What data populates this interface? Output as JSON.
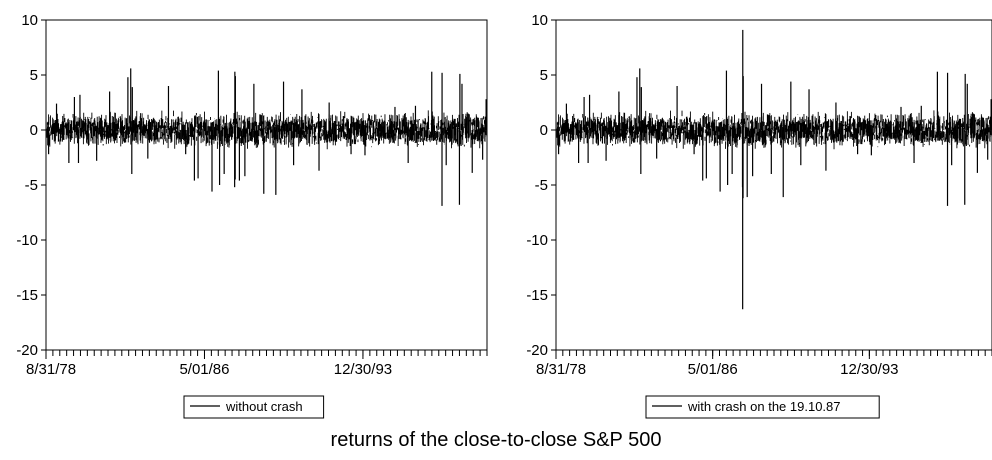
{
  "caption": "returns of the close-to-close  S&P 500",
  "chart_data": [
    {
      "type": "line",
      "title": "",
      "xlabel": "",
      "ylabel": "",
      "ylim": [
        -20,
        10
      ],
      "yticks": [
        -20,
        -15,
        -10,
        -5,
        0,
        5,
        10
      ],
      "x_start": "8/31/78",
      "x_end": "12/31/99",
      "x_tick_labels": [
        "8/31/78",
        "5/01/86",
        "12/30/93"
      ],
      "legend": "without crash",
      "legend_position": "bottom-center",
      "grid": false,
      "color": "#000000",
      "baseline_band": [
        -1.2,
        1.2
      ],
      "spikes": [
        {
          "date": "1978-10-16",
          "value": -2.2
        },
        {
          "date": "1979-03-05",
          "value": 2.4
        },
        {
          "date": "1979-10-09",
          "value": -3.0
        },
        {
          "date": "1980-01-15",
          "value": 3.0
        },
        {
          "date": "1980-03-27",
          "value": -3.0
        },
        {
          "date": "1980-04-22",
          "value": 3.2
        },
        {
          "date": "1981-02-11",
          "value": -2.8
        },
        {
          "date": "1981-09-28",
          "value": 3.5
        },
        {
          "date": "1982-08-17",
          "value": 4.8
        },
        {
          "date": "1982-10-06",
          "value": 5.6
        },
        {
          "date": "1982-10-25",
          "value": -4.0
        },
        {
          "date": "1982-11-03",
          "value": 3.9
        },
        {
          "date": "1983-08-04",
          "value": -2.6
        },
        {
          "date": "1984-08-03",
          "value": 4.0
        },
        {
          "date": "1985-06-03",
          "value": -2.2
        },
        {
          "date": "1985-11-04",
          "value": -4.6
        },
        {
          "date": "1986-01-08",
          "value": -4.4
        },
        {
          "date": "1986-09-11",
          "value": -5.6
        },
        {
          "date": "1987-01-02",
          "value": 5.4
        },
        {
          "date": "1987-01-23",
          "value": -5.0
        },
        {
          "date": "1987-04-14",
          "value": -4.0
        },
        {
          "date": "1987-10-16",
          "value": -5.2
        },
        {
          "date": "1987-10-20",
          "value": 5.3
        },
        {
          "date": "1987-10-26",
          "value": -4.5
        },
        {
          "date": "1987-10-29",
          "value": 4.9
        },
        {
          "date": "1988-01-08",
          "value": -4.6
        },
        {
          "date": "1988-04-14",
          "value": -4.2
        },
        {
          "date": "1988-09-20",
          "value": 4.2
        },
        {
          "date": "1989-03-14",
          "value": -5.8
        },
        {
          "date": "1989-10-13",
          "value": -5.9
        },
        {
          "date": "1990-02-26",
          "value": 4.4
        },
        {
          "date": "1990-08-23",
          "value": -3.2
        },
        {
          "date": "1991-01-17",
          "value": 3.7
        },
        {
          "date": "1991-11-15",
          "value": -3.7
        },
        {
          "date": "1992-05-12",
          "value": 2.5
        },
        {
          "date": "1993-06-03",
          "value": -2.2
        },
        {
          "date": "1994-02-04",
          "value": -2.3
        },
        {
          "date": "1995-07-19",
          "value": 2.1
        },
        {
          "date": "1996-03-08",
          "value": -3.0
        },
        {
          "date": "1996-07-15",
          "value": 2.2
        },
        {
          "date": "1997-04-29",
          "value": 5.3
        },
        {
          "date": "1997-10-27",
          "value": -6.9
        },
        {
          "date": "1997-10-28",
          "value": 5.2
        },
        {
          "date": "1998-01-09",
          "value": -3.2
        },
        {
          "date": "1998-08-31",
          "value": -6.8
        },
        {
          "date": "1998-09-08",
          "value": 5.1
        },
        {
          "date": "1998-10-15",
          "value": 4.2
        },
        {
          "date": "1999-04-14",
          "value": -3.9
        },
        {
          "date": "1999-10-15",
          "value": -2.7
        },
        {
          "date": "1999-12-15",
          "value": 2.8
        }
      ]
    },
    {
      "type": "line",
      "title": "",
      "xlabel": "",
      "ylabel": "",
      "ylim": [
        -20,
        10
      ],
      "yticks": [
        -20,
        -15,
        -10,
        -5,
        0,
        5,
        10
      ],
      "x_start": "8/31/78",
      "x_end": "12/31/99",
      "x_tick_labels": [
        "8/31/78",
        "5/01/86",
        "12/30/93"
      ],
      "legend": "with crash on the 19.10.87",
      "legend_position": "bottom-center",
      "grid": false,
      "color": "#000000",
      "baseline_band": [
        -1.2,
        1.2
      ],
      "spikes": [
        {
          "date": "1978-10-16",
          "value": -2.2
        },
        {
          "date": "1979-03-05",
          "value": 2.4
        },
        {
          "date": "1979-10-09",
          "value": -3.0
        },
        {
          "date": "1980-01-15",
          "value": 3.0
        },
        {
          "date": "1980-03-27",
          "value": -3.0
        },
        {
          "date": "1980-04-22",
          "value": 3.2
        },
        {
          "date": "1981-02-11",
          "value": -2.8
        },
        {
          "date": "1981-09-28",
          "value": 3.5
        },
        {
          "date": "1982-08-17",
          "value": 4.8
        },
        {
          "date": "1982-10-06",
          "value": 5.6
        },
        {
          "date": "1982-10-25",
          "value": -4.0
        },
        {
          "date": "1982-11-03",
          "value": 3.9
        },
        {
          "date": "1983-08-04",
          "value": -2.6
        },
        {
          "date": "1984-08-03",
          "value": 4.0
        },
        {
          "date": "1985-06-03",
          "value": -2.2
        },
        {
          "date": "1985-11-04",
          "value": -4.6
        },
        {
          "date": "1986-01-08",
          "value": -4.4
        },
        {
          "date": "1986-09-11",
          "value": -5.6
        },
        {
          "date": "1987-01-02",
          "value": 5.4
        },
        {
          "date": "1987-01-23",
          "value": -5.0
        },
        {
          "date": "1987-04-14",
          "value": -4.0
        },
        {
          "date": "1987-10-16",
          "value": -5.2
        },
        {
          "date": "1987-10-19",
          "value": -16.3
        },
        {
          "date": "1987-10-21",
          "value": 9.1
        },
        {
          "date": "1987-10-26",
          "value": -6.2
        },
        {
          "date": "1987-10-29",
          "value": 4.9
        },
        {
          "date": "1988-01-08",
          "value": -6.1
        },
        {
          "date": "1988-04-14",
          "value": -4.2
        },
        {
          "date": "1988-09-20",
          "value": 4.2
        },
        {
          "date": "1989-03-14",
          "value": -4.0
        },
        {
          "date": "1989-10-13",
          "value": -6.1
        },
        {
          "date": "1990-02-26",
          "value": 4.4
        },
        {
          "date": "1990-08-23",
          "value": -3.2
        },
        {
          "date": "1991-01-17",
          "value": 3.7
        },
        {
          "date": "1991-11-15",
          "value": -3.7
        },
        {
          "date": "1992-05-12",
          "value": 2.5
        },
        {
          "date": "1993-06-03",
          "value": -2.2
        },
        {
          "date": "1994-02-04",
          "value": -2.3
        },
        {
          "date": "1995-07-19",
          "value": 2.1
        },
        {
          "date": "1996-03-08",
          "value": -3.0
        },
        {
          "date": "1996-07-15",
          "value": 2.2
        },
        {
          "date": "1997-04-29",
          "value": 5.3
        },
        {
          "date": "1997-10-27",
          "value": -6.9
        },
        {
          "date": "1997-10-28",
          "value": 5.2
        },
        {
          "date": "1998-01-09",
          "value": -3.2
        },
        {
          "date": "1998-08-31",
          "value": -6.8
        },
        {
          "date": "1998-09-08",
          "value": 5.1
        },
        {
          "date": "1998-10-15",
          "value": 4.2
        },
        {
          "date": "1999-04-14",
          "value": -3.9
        },
        {
          "date": "1999-10-15",
          "value": -2.7
        },
        {
          "date": "1999-12-15",
          "value": 2.8
        }
      ]
    }
  ]
}
